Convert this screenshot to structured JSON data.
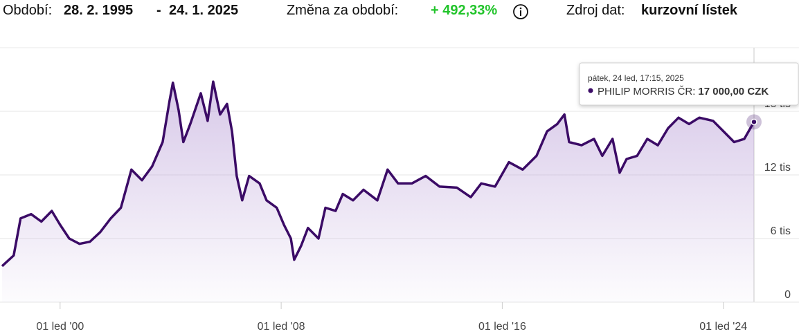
{
  "header": {
    "period_label": "Období:",
    "period_start": "28. 2. 1995",
    "period_separator": "-",
    "period_end": "24. 1. 2025",
    "change_label": "Změna za období:",
    "change_value": "+ 492,33%",
    "source_label": "Zdroj dat:",
    "source_value": "kurzovní lístek"
  },
  "chart_data": {
    "type": "line",
    "color": "#3b0b66",
    "grid": true,
    "x": [
      1997.9,
      1998.32,
      1998.57,
      1998.95,
      1999.32,
      1999.7,
      2000.0,
      2000.33,
      2000.7,
      2001.08,
      2001.45,
      2001.83,
      2002.2,
      2002.58,
      2002.96,
      2003.33,
      2003.71,
      2003.96,
      2004.08,
      2004.29,
      2004.46,
      2004.71,
      2005.09,
      2005.34,
      2005.54,
      2005.79,
      2006.04,
      2006.22,
      2006.39,
      2006.59,
      2006.84,
      2007.22,
      2007.47,
      2007.84,
      2008.1,
      2008.35,
      2008.47,
      2008.72,
      2008.97,
      2009.35,
      2009.6,
      2009.97,
      2010.23,
      2010.6,
      2010.98,
      2011.48,
      2011.85,
      2012.23,
      2012.73,
      2013.23,
      2013.73,
      2014.36,
      2014.86,
      2015.24,
      2015.74,
      2016.24,
      2016.74,
      2017.24,
      2017.62,
      2017.99,
      2018.25,
      2018.42,
      2018.87,
      2019.32,
      2019.62,
      2019.99,
      2020.25,
      2020.5,
      2020.88,
      2021.25,
      2021.63,
      2022.0,
      2022.38,
      2022.76,
      2023.13,
      2023.63,
      2024.01,
      2024.39,
      2024.76,
      2025.11
    ],
    "values": [
      3400,
      4400,
      7900,
      8300,
      7600,
      8600,
      7300,
      6000,
      5500,
      5700,
      6600,
      7900,
      8900,
      12500,
      11500,
      12800,
      15100,
      19000,
      20700,
      18100,
      15100,
      16800,
      19700,
      17100,
      20800,
      17700,
      18700,
      16100,
      11900,
      9600,
      11900,
      11200,
      9600,
      8900,
      7300,
      6000,
      4000,
      5300,
      7000,
      6000,
      8900,
      8600,
      10200,
      9600,
      10600,
      9600,
      12500,
      11200,
      11200,
      11900,
      10900,
      10800,
      9900,
      11200,
      10900,
      13200,
      12500,
      13800,
      16100,
      16800,
      17700,
      15100,
      14800,
      15400,
      13800,
      15400,
      12200,
      13500,
      13800,
      15400,
      14800,
      16400,
      17400,
      16800,
      17400,
      17100,
      16100,
      15100,
      15400,
      17000
    ],
    "xlim": [
      1997.9,
      2025.11
    ],
    "xticks": [
      {
        "value": 2000,
        "label": "01 led '00"
      },
      {
        "value": 2008,
        "label": "01 led '08"
      },
      {
        "value": 2016,
        "label": "01 led '16"
      },
      {
        "value": 2024,
        "label": "01 led '24"
      }
    ],
    "ylim": [
      0,
      24000
    ],
    "yticks": [
      0,
      {
        "value": 6000,
        "label": "6 tis"
      },
      {
        "value": 12000,
        "label": "12 tis"
      },
      {
        "value": 18000,
        "label": "18 tis"
      }
    ],
    "tooltip": {
      "date": "pátek, 24 led, 17:15, 2025",
      "series_label": "PHILIP MORRIS ČR:",
      "value_label": "17 000,00 CZK"
    }
  }
}
